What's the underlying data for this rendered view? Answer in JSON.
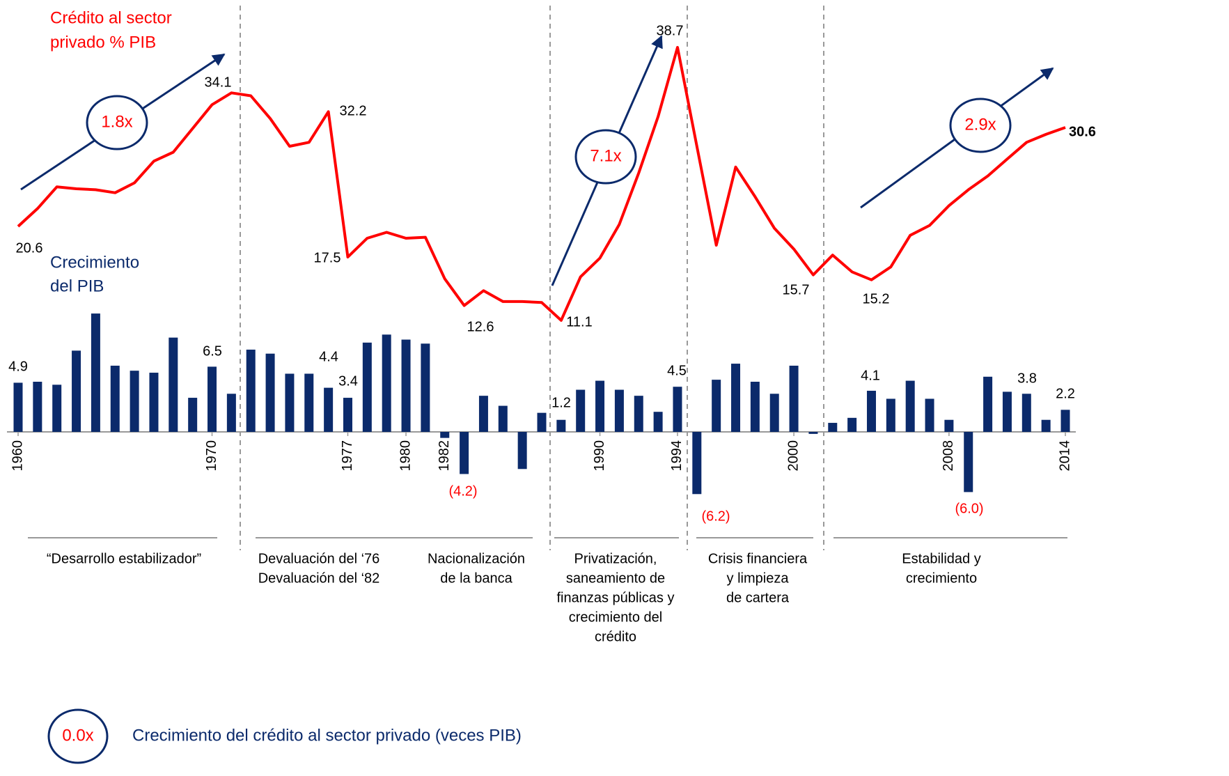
{
  "chart_data": {
    "type": "combo",
    "x": [
      1960,
      1961,
      1962,
      1963,
      1964,
      1965,
      1966,
      1967,
      1968,
      1969,
      1970,
      1971,
      1972,
      1973,
      1974,
      1975,
      1976,
      1977,
      1978,
      1979,
      1980,
      1981,
      1982,
      1983,
      1984,
      1985,
      1986,
      1987,
      1988,
      1989,
      1990,
      1991,
      1992,
      1993,
      1994,
      1995,
      1996,
      1997,
      1998,
      1999,
      2000,
      2001,
      2002,
      2003,
      2004,
      2005,
      2006,
      2007,
      2008,
      2009,
      2010,
      2011,
      2012,
      2013,
      2014
    ],
    "xlim": [
      1960,
      2014
    ],
    "xticks": [
      1960,
      1970,
      1977,
      1980,
      1982,
      1990,
      1994,
      2000,
      2008,
      2014
    ],
    "ylim": [
      -7,
      12.5
    ],
    "y2lim": [
      10,
      40
    ],
    "series": [
      {
        "type": "bar",
        "label_lines": [
          "Crecimiento",
          "del PIB"
        ],
        "color": "#0b2a6b",
        "values": [
          4.9,
          5.0,
          4.7,
          8.1,
          11.8,
          6.6,
          6.1,
          5.9,
          9.4,
          3.4,
          6.5,
          3.8,
          8.2,
          7.8,
          5.8,
          5.8,
          4.4,
          3.4,
          8.9,
          9.7,
          9.2,
          8.8,
          -0.6,
          -4.2,
          3.6,
          2.6,
          -3.7,
          1.9,
          1.2,
          4.2,
          5.1,
          4.2,
          3.6,
          2.0,
          4.5,
          -6.2,
          5.2,
          6.8,
          5.0,
          3.8,
          6.6,
          -0.2,
          0.9,
          1.4,
          4.1,
          3.3,
          5.1,
          3.3,
          1.2,
          -6.0,
          5.5,
          4.0,
          3.8,
          1.2,
          2.2
        ],
        "value_labels": [
          "4.9",
          null,
          null,
          null,
          null,
          null,
          null,
          null,
          null,
          null,
          "6.5",
          null,
          null,
          null,
          null,
          null,
          "4.4",
          "3.4",
          null,
          null,
          null,
          null,
          null,
          "(4.2)",
          null,
          null,
          null,
          null,
          "1.2",
          null,
          null,
          null,
          null,
          null,
          "4.5",
          "(6.2)",
          null,
          null,
          null,
          null,
          null,
          null,
          null,
          null,
          "4.1",
          null,
          null,
          null,
          null,
          "(6.0)",
          null,
          null,
          "3.8",
          null,
          "2.2"
        ]
      },
      {
        "type": "line",
        "axis": "y2",
        "label_lines": [
          "Crédito al sector",
          "privado % PIB"
        ],
        "color": "#ff0000",
        "values": [
          20.6,
          22.4,
          24.6,
          24.4,
          24.3,
          24.0,
          25.0,
          27.2,
          28.1,
          30.5,
          32.9,
          34.1,
          33.8,
          31.5,
          28.7,
          29.1,
          32.2,
          17.5,
          19.4,
          20.0,
          19.4,
          19.5,
          15.3,
          12.6,
          14.1,
          13.0,
          13.0,
          12.9,
          11.1,
          15.5,
          17.4,
          20.8,
          26.0,
          31.7,
          38.7,
          28.7,
          18.7,
          26.6,
          23.6,
          20.4,
          18.3,
          15.7,
          17.7,
          16.0,
          15.2,
          16.5,
          19.7,
          20.7,
          22.7,
          24.3,
          25.7,
          27.4,
          29.1,
          29.9,
          30.6
        ],
        "value_labels": [
          "20.6",
          null,
          null,
          null,
          null,
          null,
          null,
          null,
          null,
          null,
          null,
          "34.1",
          null,
          null,
          null,
          null,
          "32.2",
          "17.5",
          null,
          null,
          null,
          null,
          null,
          "12.6",
          null,
          null,
          null,
          null,
          "11.1",
          null,
          null,
          null,
          null,
          null,
          "38.7",
          null,
          null,
          null,
          null,
          null,
          null,
          "15.7",
          null,
          null,
          "15.2",
          null,
          null,
          null,
          null,
          null,
          null,
          null,
          null,
          null,
          "30.6"
        ]
      }
    ],
    "annotations": [
      "1.8x",
      "7.1x",
      "2.9x"
    ],
    "periods": [
      [
        "“Desarrollo estabilizador”"
      ],
      [
        "Devaluación del ‘76",
        "Devaluación del ‘82"
      ],
      [
        "Nacionalización",
        "de la banca"
      ],
      [
        "Privatización,",
        "saneamiento de",
        "finanzas públicas y",
        "crecimiento del",
        "crédito"
      ],
      [
        "Crisis financiera",
        "y limpieza",
        "de cartera"
      ],
      [
        "Estabilidad y",
        "crecimiento"
      ]
    ],
    "legend": {
      "symbol": "0.0x",
      "text": "Crecimiento del crédito al sector privado (veces PIB)"
    }
  }
}
